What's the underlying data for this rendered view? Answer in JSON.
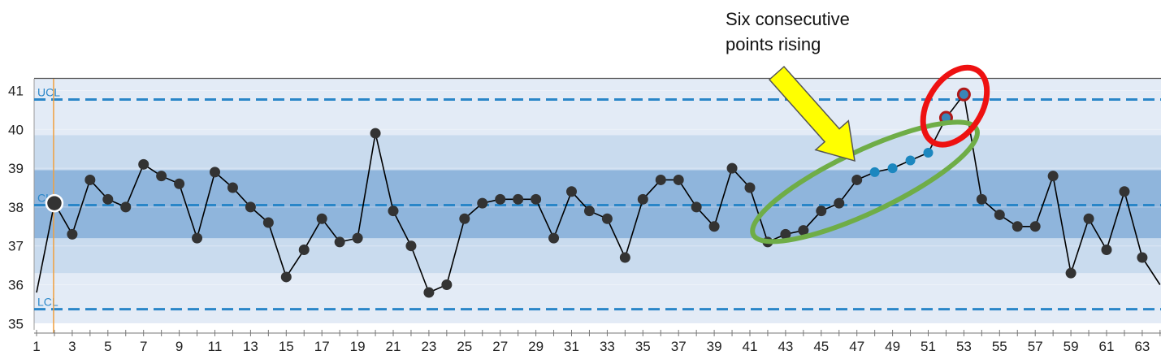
{
  "annotation": "Six consecutive\npoints rising",
  "chart_data": {
    "type": "line",
    "title": "",
    "xlabel": "",
    "ylabel": "",
    "xlim": [
      1,
      64
    ],
    "ylim": [
      34.8,
      41.3
    ],
    "yticks": [
      35,
      36,
      37,
      38,
      39,
      40,
      41
    ],
    "xticks": [
      1,
      3,
      5,
      7,
      9,
      11,
      13,
      15,
      17,
      19,
      21,
      23,
      25,
      27,
      29,
      31,
      33,
      35,
      37,
      39,
      41,
      43,
      45,
      47,
      49,
      51,
      53,
      55,
      57,
      59,
      61,
      63
    ],
    "control_limits": {
      "ucl": 40.77,
      "center": 38.05,
      "lcl": 35.37,
      "ucl_label": "UCL",
      "center_label": "CL",
      "lcl_label": "LCL"
    },
    "zones": {
      "one_sigma": [
        37.2,
        38.95
      ],
      "two_sigma": [
        36.3,
        39.85
      ]
    },
    "highlighted_point": 2,
    "trend_points": [
      48,
      49,
      50,
      51
    ],
    "out_of_control_points": [
      52,
      53
    ],
    "series": [
      {
        "x": [
          1,
          2,
          3,
          4,
          5,
          6,
          7,
          8,
          9,
          10,
          11,
          12,
          13,
          14,
          15,
          16,
          17,
          18,
          19,
          20,
          21,
          22,
          23,
          24,
          25,
          26,
          27,
          28,
          29,
          30,
          31,
          32,
          33,
          34,
          35,
          36,
          37,
          38,
          39,
          40,
          41,
          42,
          43,
          44,
          45,
          46,
          47,
          48,
          49,
          50,
          51,
          52,
          53,
          54,
          55,
          56,
          57,
          58,
          59,
          60,
          61,
          62,
          63,
          64
        ],
        "values": [
          35.8,
          38.1,
          37.3,
          38.7,
          38.2,
          38.0,
          39.1,
          38.8,
          38.6,
          37.2,
          38.9,
          38.5,
          38.0,
          37.6,
          36.2,
          36.9,
          37.7,
          37.1,
          37.2,
          39.9,
          37.9,
          37.0,
          35.8,
          36.0,
          37.7,
          38.1,
          38.2,
          38.2,
          38.2,
          37.2,
          38.4,
          37.9,
          37.7,
          36.7,
          38.2,
          38.7,
          38.7,
          38.0,
          37.5,
          39.0,
          38.5,
          37.1,
          37.3,
          37.4,
          37.9,
          38.1,
          38.7,
          38.9,
          39.0,
          39.2,
          39.4,
          40.3,
          40.9,
          38.2,
          37.8,
          37.5,
          37.5,
          38.8,
          36.3,
          37.7,
          36.9,
          38.4,
          36.7,
          36.0
        ]
      }
    ],
    "colors": {
      "band_outer": "#e3ebf6",
      "band_two_sigma": "#c9dbee",
      "band_one_sigma": "#8fb5dc",
      "limit_line": "#2a86c8",
      "series_line": "#000000",
      "point": "#333333",
      "trend_point": "#1c87bf",
      "out_point": "#3a86b8",
      "trend_ellipse": "#6fad47",
      "alert_ellipse": "#ee1111",
      "arrow_fill": "#ffff00",
      "cursor_line": "#f0a040"
    }
  }
}
